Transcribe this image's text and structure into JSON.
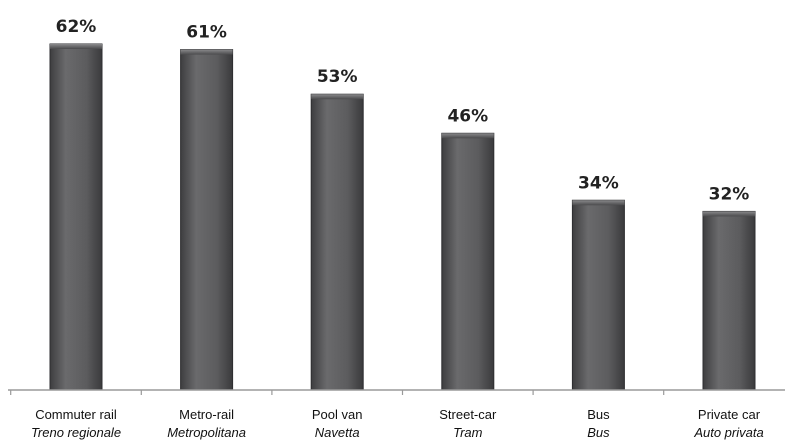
{
  "chart_data": {
    "type": "bar",
    "title": "",
    "xlabel": "",
    "ylabel": "",
    "ylim": [
      0,
      62
    ],
    "grid": false,
    "legend": "none",
    "unit": "%",
    "bar_color": "#5a5a5c",
    "categories": [
      {
        "label": "Commuter rail",
        "sublabel": "Treno regionale"
      },
      {
        "label": "Metro-rail",
        "sublabel": "Metropolitana"
      },
      {
        "label": "Pool van",
        "sublabel": "Navetta"
      },
      {
        "label": "Street-car",
        "sublabel": "Tram"
      },
      {
        "label": "Bus",
        "sublabel": "Bus"
      },
      {
        "label": "Private car",
        "sublabel": "Auto privata"
      }
    ],
    "values": [
      62,
      61,
      53,
      46,
      34,
      32
    ],
    "value_labels": [
      "62%",
      "61%",
      "53%",
      "46%",
      "34%",
      "32%"
    ]
  }
}
